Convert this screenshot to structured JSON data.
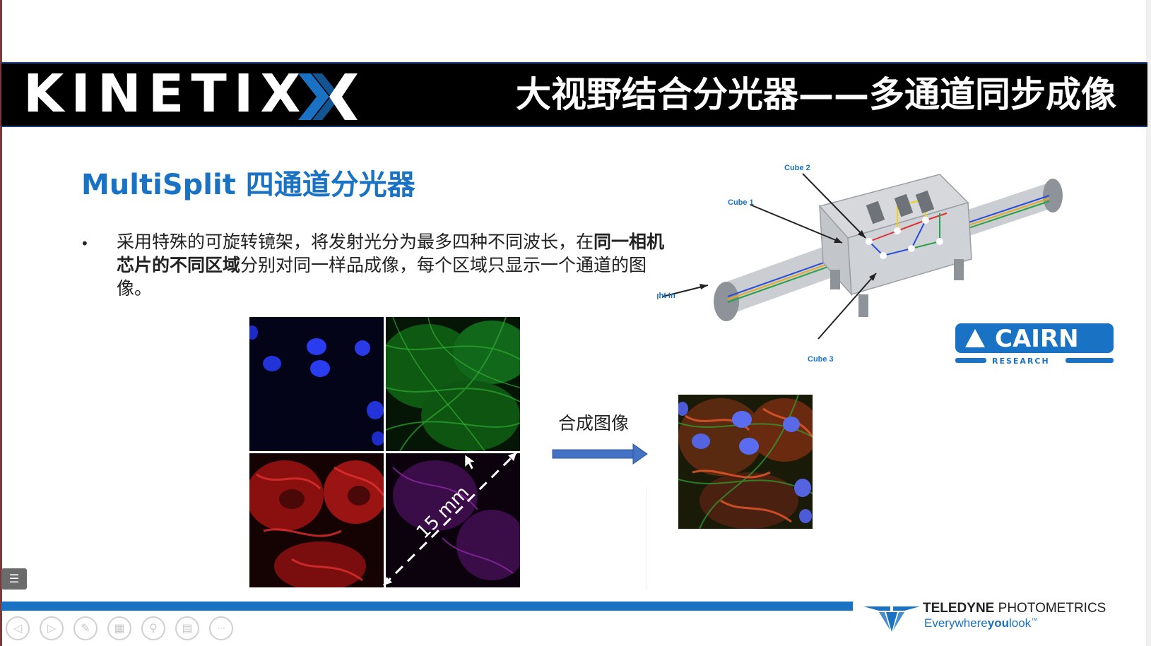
{
  "header": {
    "logo": "KINETIX",
    "title": "大视野结合分光器——多通道同步成像"
  },
  "section": {
    "title": "MultiSplit 四通道分光器"
  },
  "bullet": {
    "marker": "•",
    "part1": "采用特殊的可旋转镜架，将发射光分为最多四种不同波长，在",
    "bold": "同一相机芯片的不同区域",
    "part2": "分别对同一样品成像，每个区域只显示一个通道的图像。"
  },
  "microscopy": {
    "scale_label": "15 mm"
  },
  "merge": {
    "label": "合成图像"
  },
  "diagram": {
    "labels": [
      "Cube 2",
      "Cube 1",
      "Light In",
      "Cube 3"
    ]
  },
  "cairn": {
    "name": "CAIRN",
    "sub": "RESEARCH"
  },
  "footer": {
    "brand_bold": "TELEDYNE",
    "brand_thin": "PHOTOMETRICS",
    "slogan_a": "Everywhere",
    "slogan_b": "you",
    "slogan_c": "look",
    "slogan_tm": "™"
  },
  "toolbar": {
    "icons": [
      "prev-icon",
      "next-icon",
      "pen-icon",
      "layout-icon",
      "zoom-icon",
      "subtitle-icon",
      "more-icon"
    ],
    "glyphs": [
      "◁",
      "▷",
      "✎",
      "▦",
      "⚲",
      "▤",
      "···"
    ]
  },
  "colors": {
    "accent": "#1a72c4",
    "header_bg": "#000000"
  }
}
